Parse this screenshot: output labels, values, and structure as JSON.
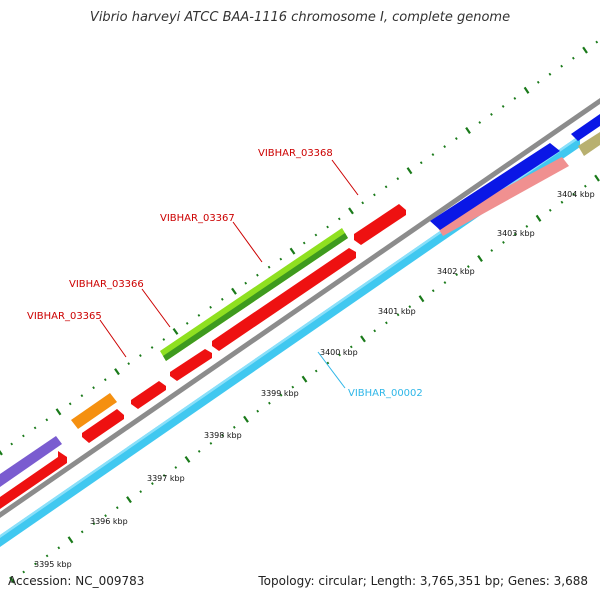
{
  "title": "Vibrio harveyi ATCC BAA-1116 chromosome I, complete genome",
  "footer": {
    "accession": "Accession: NC_009783",
    "summary": "Topology: circular; Length: 3,765,351 bp; Genes: 3,688"
  },
  "colors": {
    "backbone": "#8c8c8c",
    "tick": "#1a7a1a",
    "minus_strand": "#40c8f0",
    "red_gene": "#ee1111",
    "blue_gene": "#0a17e6",
    "pink_gene": "#f09090",
    "green_gene": "#8fe020",
    "purple_gene": "#7a5cd0",
    "orange_gene": "#f59010",
    "olive_gene": "#b8b070",
    "label_red": "#cc0000",
    "label_cyan": "#2fb7e8"
  },
  "scale": {
    "unit": "kbp",
    "start_kbp": 3394,
    "end_kbp": 3405,
    "labels": [
      {
        "text": "3395 kbp",
        "kbp": 3395
      },
      {
        "text": "3396 kbp",
        "kbp": 3396
      },
      {
        "text": "3397 kbp",
        "kbp": 3397
      },
      {
        "text": "3398 kbp",
        "kbp": 3398
      },
      {
        "text": "3399 kbp",
        "kbp": 3399
      },
      {
        "text": "3400 kbp",
        "kbp": 3400
      },
      {
        "text": "3401 kbp",
        "kbp": 3401
      },
      {
        "text": "3402 kbp",
        "kbp": 3402
      },
      {
        "text": "3403 kbp",
        "kbp": 3403
      },
      {
        "text": "3404 kbp",
        "kbp": 3404
      }
    ]
  },
  "gene_labels": [
    {
      "text": "VIBHAR_03368",
      "color": "#cc0000"
    },
    {
      "text": "VIBHAR_03367",
      "color": "#cc0000"
    },
    {
      "text": "VIBHAR_03366",
      "color": "#cc0000"
    },
    {
      "text": "VIBHAR_03365",
      "color": "#cc0000"
    },
    {
      "text": "VIBHAR_00002",
      "color": "#2fb7e8"
    }
  ]
}
